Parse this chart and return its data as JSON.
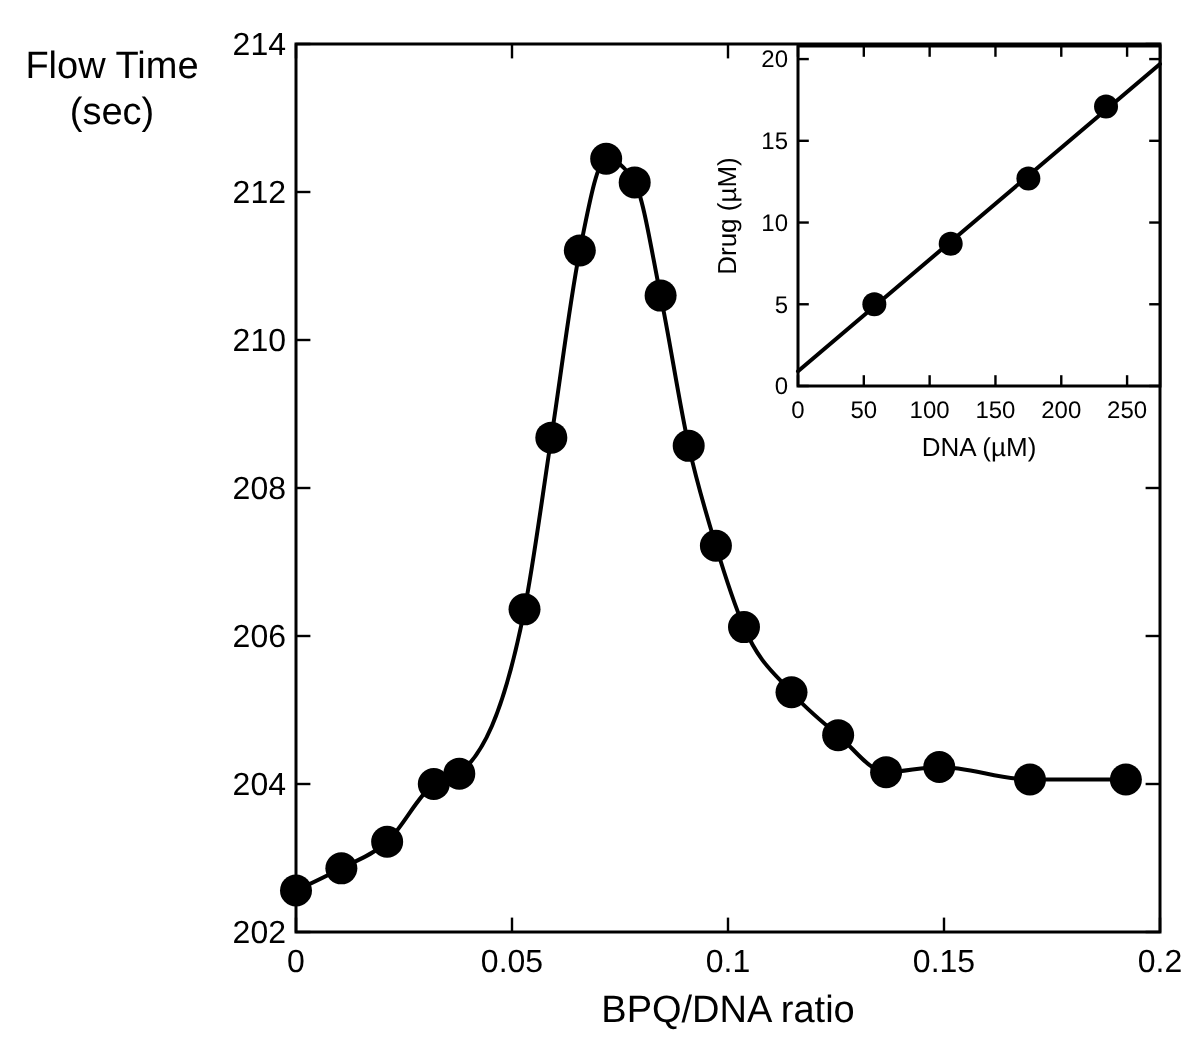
{
  "chart_data": [
    {
      "type": "line",
      "xlabel": "BPQ/DNA ratio",
      "ylabel": "Flow Time\n(sec)",
      "xlim": [
        0,
        0.2
      ],
      "ylim": [
        202,
        214
      ],
      "xticks": [
        0,
        0.05,
        0.1,
        0.15,
        0.2
      ],
      "yticks": [
        202,
        204,
        206,
        208,
        210,
        212,
        214
      ],
      "marker": "circle",
      "line_style": "solid",
      "grid": false,
      "series": [
        {
          "color": "#000000",
          "x": [
            0,
            0.0105,
            0.0211,
            0.0319,
            0.0378,
            0.0529,
            0.0591,
            0.0657,
            0.0718,
            0.0784,
            0.0844,
            0.0909,
            0.0972,
            0.1037,
            0.1147,
            0.1255,
            0.1366,
            0.1489,
            0.1699,
            0.1921
          ],
          "values": [
            202.56,
            202.86,
            203.22,
            204.0,
            204.14,
            206.36,
            208.68,
            211.21,
            212.45,
            212.13,
            210.6,
            208.57,
            207.22,
            206.12,
            205.24,
            204.66,
            204.16,
            204.23,
            204.06,
            204.06
          ]
        }
      ]
    },
    {
      "type": "scatter",
      "xlabel": "DNA  (µM)",
      "ylabel": "Drug (µM)",
      "xlim": [
        0,
        275
      ],
      "ylim": [
        0,
        20.8
      ],
      "xticks": [
        0,
        50,
        100,
        150,
        200,
        250
      ],
      "yticks": [
        0,
        5,
        10,
        15,
        20
      ],
      "marker": "circle",
      "grid": false,
      "series": [
        {
          "color": "#000000",
          "x": [
            58,
            116,
            175,
            234
          ],
          "values": [
            5.0,
            8.7,
            12.7,
            17.1
          ]
        },
        {
          "type": "line",
          "marker": "none",
          "color": "#000000",
          "x": [
            0,
            275
          ],
          "values": [
            0.9,
            19.7
          ]
        }
      ]
    }
  ]
}
